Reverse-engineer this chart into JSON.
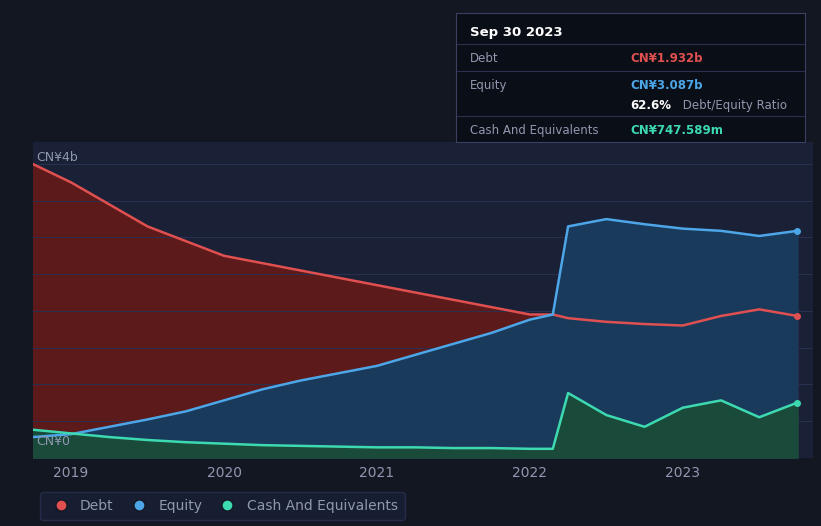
{
  "bg_color": "#131722",
  "plot_bg_color": "#1a2035",
  "grid_color": "#2a3050",
  "text_color": "#9098b0",
  "white_color": "#ffffff",
  "debt_color": "#e05050",
  "equity_color": "#4da6e8",
  "cash_color": "#3dd9b0",
  "debt_fill_color": "#5c1a1a",
  "equity_fill_color": "#1a3a5c",
  "cash_fill_color": "#1a4a3a",
  "ylabel_top": "CN¥4b",
  "ylabel_bottom": "CN¥0",
  "x_ticks": [
    2019,
    2020,
    2021,
    2022,
    2023
  ],
  "tooltip_title": "Sep 30 2023",
  "tooltip_debt_label": "Debt",
  "tooltip_debt_value": "CN¥1.932b",
  "tooltip_equity_label": "Equity",
  "tooltip_equity_value": "CN¥3.087b",
  "tooltip_ratio_bold": "62.6%",
  "tooltip_ratio_normal": " Debt/Equity Ratio",
  "tooltip_cash_label": "Cash And Equivalents",
  "tooltip_cash_value": "CN¥747.589m",
  "legend_debt": "Debt",
  "legend_equity": "Equity",
  "legend_cash": "Cash And Equivalents",
  "x": [
    2018.75,
    2019.0,
    2019.25,
    2019.5,
    2019.75,
    2020.0,
    2020.25,
    2020.5,
    2020.75,
    2021.0,
    2021.25,
    2021.5,
    2021.75,
    2022.0,
    2022.15,
    2022.25,
    2022.5,
    2022.75,
    2023.0,
    2023.25,
    2023.5,
    2023.75
  ],
  "debt": [
    4.0,
    3.75,
    3.45,
    3.15,
    2.95,
    2.75,
    2.65,
    2.55,
    2.45,
    2.35,
    2.25,
    2.15,
    2.05,
    1.95,
    1.95,
    1.9,
    1.85,
    1.82,
    1.8,
    1.93,
    2.02,
    1.93
  ],
  "equity": [
    0.28,
    0.32,
    0.42,
    0.52,
    0.63,
    0.78,
    0.93,
    1.05,
    1.15,
    1.25,
    1.4,
    1.55,
    1.7,
    1.88,
    1.95,
    3.15,
    3.25,
    3.18,
    3.12,
    3.09,
    3.02,
    3.09
  ],
  "cash": [
    0.38,
    0.33,
    0.28,
    0.24,
    0.21,
    0.19,
    0.17,
    0.16,
    0.15,
    0.14,
    0.14,
    0.13,
    0.13,
    0.12,
    0.12,
    0.88,
    0.58,
    0.42,
    0.68,
    0.78,
    0.55,
    0.75
  ],
  "xlim": [
    2018.75,
    2023.85
  ],
  "ylim": [
    0,
    4.3
  ]
}
